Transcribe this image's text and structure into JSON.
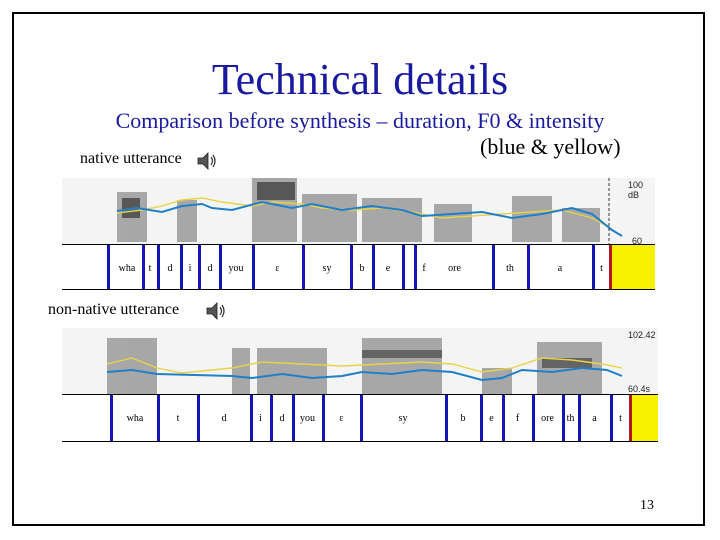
{
  "slide": {
    "title": "Technical details",
    "subtitle_line1": "Comparison before synthesis – duration, F0 & intensity",
    "subtitle_line2": "(blue & yellow)",
    "page_number": "13"
  },
  "native": {
    "label": "native utterance",
    "db_top": "100 dB",
    "db_bottom": "60 dB",
    "segments": [
      "wha",
      "t",
      "d",
      "i",
      "d",
      "you",
      "ɛ",
      "sy",
      "b",
      "e",
      "f",
      "ore",
      "th",
      "a",
      "t"
    ]
  },
  "nonnative": {
    "label": "non-native utterance",
    "db_top": "102.42",
    "db_bottom": "60.4s",
    "segments": [
      "wha",
      "t",
      "d",
      "i",
      "d",
      "you",
      "ɛ",
      "sy",
      "b",
      "e",
      "f",
      "ore",
      "th",
      "a",
      "t"
    ]
  },
  "icons": {
    "speaker": "speaker-icon"
  },
  "colors": {
    "title": "#1a1aa0",
    "f0": "#1f7fc8",
    "intensity": "#e8d24a",
    "boundary": "#1515b5",
    "highlight": "#f7f000"
  }
}
